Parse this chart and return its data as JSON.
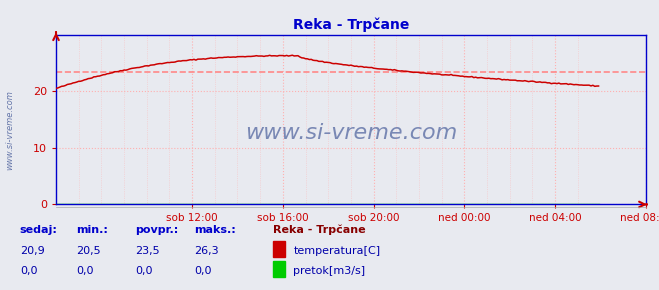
{
  "title": "Reka - Trpčane",
  "background_color": "#e8eaf0",
  "plot_bg_color": "#e8eaf0",
  "grid_color": "#ffb0b0",
  "grid_style": ":",
  "x_labels": [
    "sob 12:00",
    "sob 16:00",
    "sob 20:00",
    "ned 00:00",
    "ned 04:00",
    "ned 08:00"
  ],
  "x_ticks_pos": [
    72,
    120,
    168,
    216,
    264,
    312
  ],
  "x_total_points": 288,
  "ylim": [
    0,
    30
  ],
  "y_ticks": [
    0,
    10,
    20
  ],
  "avg_line_value": 23.5,
  "avg_line_color": "#ff8888",
  "temp_color": "#cc0000",
  "flow_color": "#00cc00",
  "watermark": "www.si-vreme.com",
  "left_label": "www.si-vreme.com",
  "title_color": "#0000cc",
  "spine_color": "#0000cc",
  "tick_color": "#cc0000",
  "xtick_color": "#cc0000",
  "stats_label_color": "#0000cc",
  "stats_val_color": "#0000aa",
  "stats_labels": [
    "sedaj:",
    "min.:",
    "povpr.:",
    "maks.:"
  ],
  "stats_temp": [
    "20,9",
    "20,5",
    "23,5",
    "26,3"
  ],
  "stats_flow": [
    "0,0",
    "0,0",
    "0,0",
    "0,0"
  ],
  "legend_title": "Reka - Trpčane",
  "legend_items": [
    "temperatura[C]",
    "pretok[m3/s]"
  ],
  "legend_colors": [
    "#cc0000",
    "#00cc00"
  ],
  "watermark_color": "#6677aa",
  "left_label_color": "#6677aa"
}
